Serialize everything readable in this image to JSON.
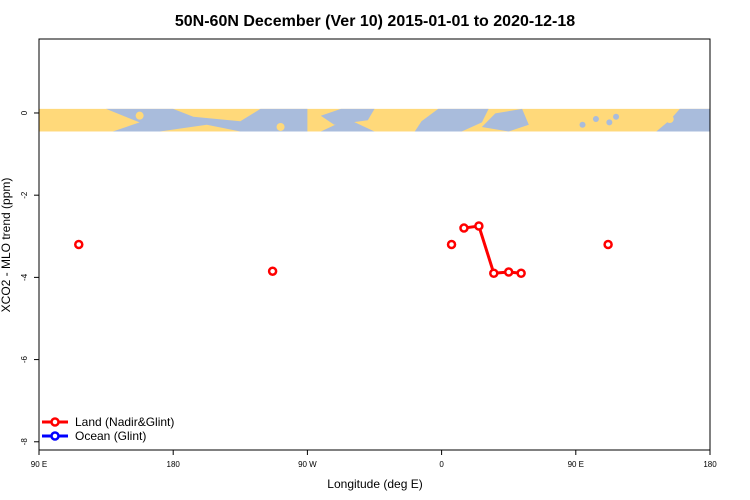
{
  "chart_data": {
    "type": "line",
    "title": "50N-60N December (Ver 10)   2015-01-01 to 2020-12-18",
    "xlabel": "Longitude (deg E)",
    "ylabel": "XCO2 - MLO trend (ppm)",
    "xlim": [
      -90,
      180
    ],
    "ylim": [
      -8.2,
      1.8
    ],
    "x_ticks": [
      {
        "value": -90,
        "label": "90 E"
      },
      {
        "value": -36,
        "label": "180"
      },
      {
        "value": 18,
        "label": "90 W"
      },
      {
        "value": 72,
        "label": "0"
      },
      {
        "value": 126,
        "label": "90 E"
      },
      {
        "value": 180,
        "label": "180"
      }
    ],
    "y_ticks": [
      {
        "value": 0,
        "label": "0"
      },
      {
        "value": -2,
        "label": "-2"
      },
      {
        "value": -4,
        "label": "-4"
      },
      {
        "value": -6,
        "label": "-6"
      },
      {
        "value": -8,
        "label": "-8"
      }
    ],
    "map_band": {
      "y_top": 0.1,
      "y_bottom": -0.45,
      "land_color": "#FFD97A",
      "ocean_color": "#A9BCDC"
    },
    "series": [
      {
        "name": "Land (Nadir&Glint)",
        "color": "#FF0000",
        "segments": [
          [
            [
              -74,
              -3.2
            ]
          ],
          [
            [
              4,
              -3.85
            ]
          ],
          [
            [
              76,
              -3.2
            ]
          ],
          [
            [
              81,
              -2.8
            ],
            [
              87,
              -2.75
            ],
            [
              93,
              -3.9
            ],
            [
              99,
              -3.87
            ],
            [
              104,
              -3.9
            ]
          ],
          [
            [
              139,
              -3.2
            ]
          ]
        ]
      },
      {
        "name": "Ocean (Glint)",
        "color": "#0000FF",
        "segments": []
      }
    ],
    "legend_position": "bottom-left"
  }
}
